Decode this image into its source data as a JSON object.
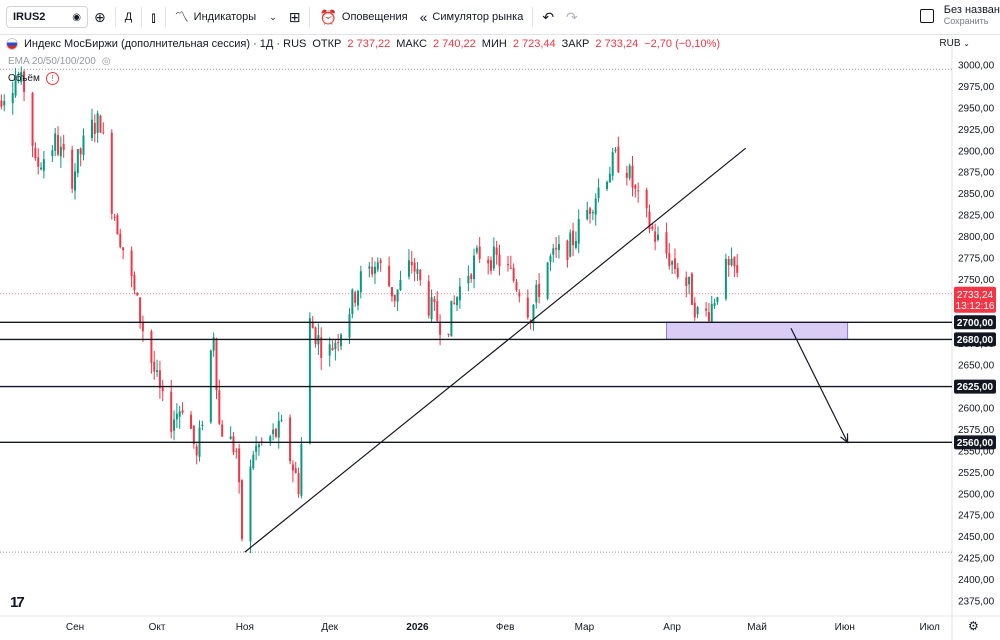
{
  "toolbar": {
    "symbol": "IRUS2",
    "interval": "Д",
    "indicators_label": "Индикаторы",
    "alerts_label": "Оповещения",
    "replay_label": "Симулятор рынка",
    "layout_name": "Без назван",
    "layout_save": "Сохранить"
  },
  "legend": {
    "title": "Индекс МосБиржи (дополнительная сессия) · 1Д · RUS",
    "open_label": "ОТКР",
    "open": "2 737,22",
    "high_label": "МАКС",
    "high": "2 740,22",
    "low_label": "МИН",
    "low": "2 723,44",
    "close_label": "ЗАКР",
    "close": "2 733,24",
    "change": "−2,70 (−0,10%)",
    "ema": "EMA 20/50/100/200",
    "volume": "Объём"
  },
  "colors": {
    "up": "#089981",
    "down": "#f23645",
    "line": "#131722",
    "zone": "#d9ccf5",
    "zone_border": "#8e7ce0"
  },
  "chart_data": {
    "type": "candlestick",
    "currency": "RUB",
    "ylim": [
      2355,
      3010
    ],
    "y_ticks": [
      3000,
      2975,
      2950,
      2925,
      2900,
      2875,
      2850,
      2825,
      2800,
      2775,
      2750,
      2725,
      2700,
      2675,
      2650,
      2625,
      2600,
      2575,
      2550,
      2525,
      2500,
      2475,
      2450,
      2425,
      2400,
      2375
    ],
    "y_tick_labels": [
      "3000,00",
      "2975,00",
      "2950,00",
      "2925,00",
      "2900,00",
      "2875,00",
      "2850,00",
      "2825,00",
      "2800,00",
      "2775,00",
      "2750,00",
      "2725,00",
      "2700,00",
      "2675,00",
      "2650,00",
      "2625,00",
      "2600,00",
      "2575,00",
      "2550,00",
      "2525,00",
      "2500,00",
      "2475,00",
      "2450,00",
      "2425,00",
      "2400,00",
      "2375,00"
    ],
    "x_labels": [
      "Сен",
      "Окт",
      "Ноя",
      "Дек",
      "2026",
      "Фев",
      "Мар",
      "Апр",
      "Май",
      "Июн",
      "Июл"
    ],
    "x_label_days": [
      29,
      58,
      89,
      119,
      150,
      181,
      209,
      240,
      270,
      301,
      331
    ],
    "last_price": "2733,24",
    "countdown": "13:12:16",
    "last_price_value": 2733.24,
    "levels": [
      {
        "value": 2700,
        "label": "2700,00"
      },
      {
        "value": 2680,
        "label": "2680,00"
      },
      {
        "value": 2625,
        "label": "2625,00"
      },
      {
        "value": 2560,
        "label": "2560,00"
      }
    ],
    "high_dotted": 2995,
    "low_dotted": 2432,
    "trendline": {
      "start": [
        89,
        2432
      ],
      "end": [
        266,
        2903
      ]
    },
    "zone": {
      "day_start": 238,
      "day_end": 302,
      "low": 2680,
      "high": 2700
    },
    "arrow": {
      "start": [
        282,
        2693
      ],
      "end": [
        302,
        2560
      ]
    },
    "anchors": [
      {
        "day": 0,
        "price": 2730
      },
      {
        "day": 2,
        "price": 2960
      },
      {
        "day": 8,
        "price": 2985
      },
      {
        "day": 12,
        "price": 2970
      },
      {
        "day": 15,
        "price": 2880
      },
      {
        "day": 22,
        "price": 2910
      },
      {
        "day": 28,
        "price": 2870
      },
      {
        "day": 34,
        "price": 2925
      },
      {
        "day": 38,
        "price": 2935
      },
      {
        "day": 42,
        "price": 2840
      },
      {
        "day": 48,
        "price": 2760
      },
      {
        "day": 54,
        "price": 2680
      },
      {
        "day": 62,
        "price": 2580
      },
      {
        "day": 68,
        "price": 2610
      },
      {
        "day": 72,
        "price": 2540
      },
      {
        "day": 78,
        "price": 2690
      },
      {
        "day": 80,
        "price": 2580
      },
      {
        "day": 86,
        "price": 2550
      },
      {
        "day": 88,
        "price": 2450
      },
      {
        "day": 92,
        "price": 2550
      },
      {
        "day": 102,
        "price": 2575
      },
      {
        "day": 108,
        "price": 2510
      },
      {
        "day": 112,
        "price": 2700
      },
      {
        "day": 118,
        "price": 2660
      },
      {
        "day": 124,
        "price": 2700
      },
      {
        "day": 130,
        "price": 2750
      },
      {
        "day": 136,
        "price": 2770
      },
      {
        "day": 142,
        "price": 2730
      },
      {
        "day": 148,
        "price": 2770
      },
      {
        "day": 154,
        "price": 2720
      },
      {
        "day": 160,
        "price": 2690
      },
      {
        "day": 166,
        "price": 2750
      },
      {
        "day": 172,
        "price": 2780
      },
      {
        "day": 180,
        "price": 2770
      },
      {
        "day": 186,
        "price": 2740
      },
      {
        "day": 190,
        "price": 2710
      },
      {
        "day": 196,
        "price": 2770
      },
      {
        "day": 204,
        "price": 2790
      },
      {
        "day": 210,
        "price": 2830
      },
      {
        "day": 216,
        "price": 2870
      },
      {
        "day": 220,
        "price": 2890
      },
      {
        "day": 224,
        "price": 2880
      },
      {
        "day": 228,
        "price": 2840
      },
      {
        "day": 234,
        "price": 2800
      },
      {
        "day": 240,
        "price": 2770
      },
      {
        "day": 246,
        "price": 2740
      },
      {
        "day": 250,
        "price": 2700
      },
      {
        "day": 254,
        "price": 2720
      },
      {
        "day": 258,
        "price": 2760
      },
      {
        "day": 262,
        "price": 2760
      },
      {
        "day": 265,
        "price": 2733
      }
    ]
  }
}
